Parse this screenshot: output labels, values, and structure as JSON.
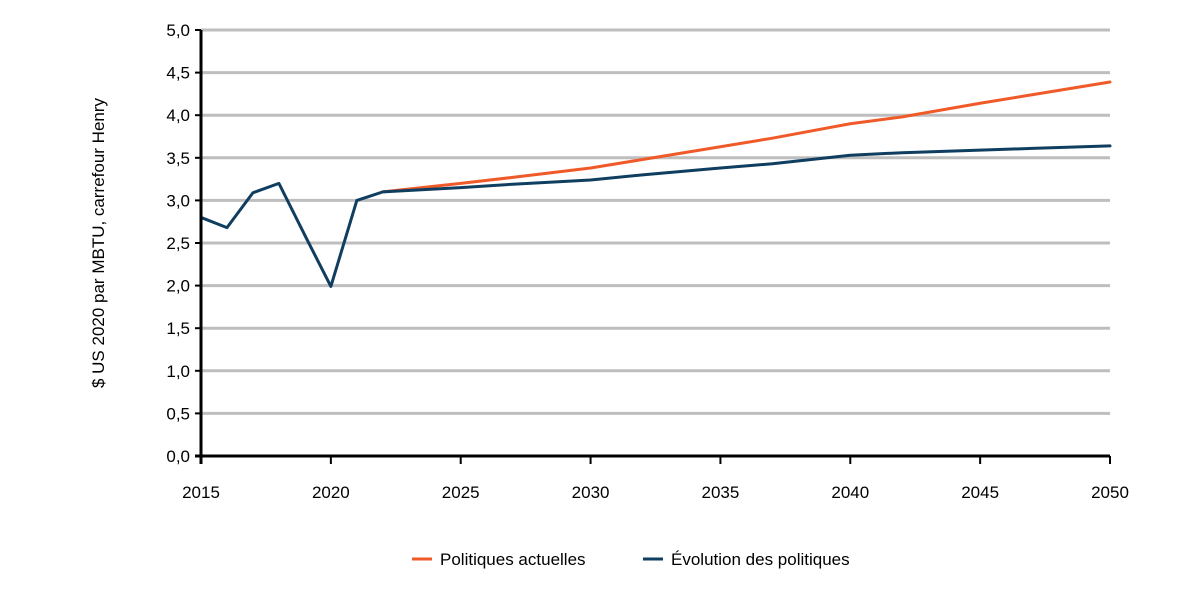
{
  "chart_data": {
    "type": "line",
    "title": "",
    "xlabel": "",
    "ylabel": "$ US 2020 par MBTU, carrefour Henry",
    "xlim": [
      2015,
      2050
    ],
    "ylim": [
      0,
      5
    ],
    "x_ticks": [
      "2015",
      "2020",
      "2025",
      "2030",
      "2035",
      "2040",
      "2045",
      "2050"
    ],
    "y_ticks": [
      "0,0",
      "0,5",
      "1,0",
      "1,5",
      "2,0",
      "2,5",
      "3,0",
      "3,5",
      "4,0",
      "4,5",
      "5,0"
    ],
    "grid": "horizontal",
    "legend_position": "bottom",
    "series": [
      {
        "name": "Politiques actuelles",
        "color": "#F05A28",
        "x": [
          2022,
          2025,
          2027,
          2030,
          2032,
          2035,
          2037,
          2040,
          2042,
          2045,
          2047,
          2050
        ],
        "y": [
          3.1,
          3.2,
          3.27,
          3.38,
          3.48,
          3.63,
          3.73,
          3.9,
          3.98,
          4.14,
          4.24,
          4.39
        ]
      },
      {
        "name": "Évolution des politiques",
        "color": "#0F3E60",
        "x": [
          2015,
          2016,
          2017,
          2018,
          2019,
          2020,
          2021,
          2022,
          2025,
          2027,
          2030,
          2032,
          2035,
          2037,
          2040,
          2042,
          2045,
          2047,
          2050
        ],
        "y": [
          2.8,
          2.68,
          3.09,
          3.2,
          2.59,
          1.99,
          3.0,
          3.1,
          3.15,
          3.19,
          3.24,
          3.3,
          3.38,
          3.43,
          3.53,
          3.56,
          3.59,
          3.61,
          3.64
        ]
      }
    ]
  }
}
